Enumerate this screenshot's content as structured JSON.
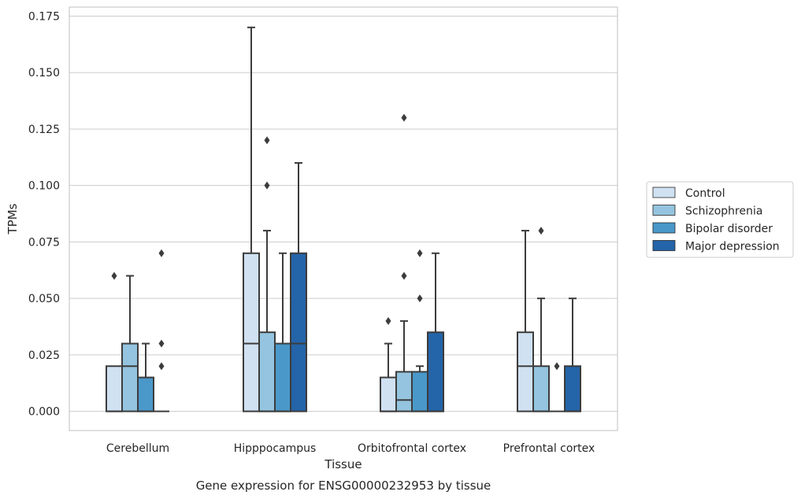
{
  "chart_data": {
    "type": "box",
    "title": "",
    "caption": "Gene expression for ENSG00000232953 by tissue",
    "xlabel": "Tissue",
    "ylabel": "TPMs",
    "ylim": [
      -0.0085,
      0.179
    ],
    "yticks": [
      0.0,
      0.025,
      0.05,
      0.075,
      0.1,
      0.125,
      0.15,
      0.175
    ],
    "ytick_labels": [
      "0.000",
      "0.025",
      "0.050",
      "0.075",
      "0.100",
      "0.125",
      "0.150",
      "0.175"
    ],
    "grid": true,
    "legend_position": "right",
    "categories": [
      "Cerebellum",
      "Hipppocampus",
      "Orbitofrontal cortex",
      "Prefrontal cortex"
    ],
    "series": [
      {
        "name": "Control",
        "color": "#d0e1f2",
        "boxes": [
          {
            "whislo": 0.0,
            "q1": 0.0,
            "med": 0.0,
            "q3": 0.02,
            "whishi": 0.02,
            "fliers": [
              0.06
            ]
          },
          {
            "whislo": 0.0,
            "q1": 0.0,
            "med": 0.03,
            "q3": 0.07,
            "whishi": 0.17,
            "fliers": []
          },
          {
            "whislo": 0.0,
            "q1": 0.0,
            "med": 0.0,
            "q3": 0.015,
            "whishi": 0.03,
            "fliers": [
              0.04
            ]
          },
          {
            "whislo": 0.0,
            "q1": 0.0,
            "med": 0.02,
            "q3": 0.035,
            "whishi": 0.08,
            "fliers": []
          }
        ]
      },
      {
        "name": "Schizophrenia",
        "color": "#94c4df",
        "boxes": [
          {
            "whislo": 0.0,
            "q1": 0.0,
            "med": 0.02,
            "q3": 0.03,
            "whishi": 0.06,
            "fliers": []
          },
          {
            "whislo": 0.0,
            "q1": 0.0,
            "med": 0.0,
            "q3": 0.035,
            "whishi": 0.08,
            "fliers": [
              0.1,
              0.12
            ]
          },
          {
            "whislo": 0.0,
            "q1": 0.0,
            "med": 0.005,
            "q3": 0.0175,
            "whishi": 0.04,
            "fliers": [
              0.06,
              0.13
            ]
          },
          {
            "whislo": 0.0,
            "q1": 0.0,
            "med": 0.0,
            "q3": 0.02,
            "whishi": 0.05,
            "fliers": [
              0.08
            ]
          }
        ]
      },
      {
        "name": "Bipolar disorder",
        "color": "#4a98c9",
        "boxes": [
          {
            "whislo": 0.0,
            "q1": 0.0,
            "med": 0.0,
            "q3": 0.015,
            "whishi": 0.03,
            "fliers": []
          },
          {
            "whislo": 0.0,
            "q1": 0.0,
            "med": 0.0,
            "q3": 0.03,
            "whishi": 0.07,
            "fliers": []
          },
          {
            "whislo": 0.0,
            "q1": 0.0,
            "med": 0.0,
            "q3": 0.0175,
            "whishi": 0.02,
            "fliers": [
              0.05,
              0.07
            ]
          },
          {
            "whislo": 0.0,
            "q1": 0.0,
            "med": 0.0,
            "q3": 0.0,
            "whishi": 0.0,
            "fliers": [
              0.02
            ]
          }
        ]
      },
      {
        "name": "Major depression",
        "color": "#2464a8",
        "boxes": [
          {
            "whislo": 0.0,
            "q1": 0.0,
            "med": 0.0,
            "q3": 0.0,
            "whishi": 0.0,
            "fliers": [
              0.02,
              0.03,
              0.07
            ]
          },
          {
            "whislo": 0.0,
            "q1": 0.0,
            "med": 0.03,
            "q3": 0.07,
            "whishi": 0.11,
            "fliers": []
          },
          {
            "whislo": 0.0,
            "q1": 0.0,
            "med": 0.0,
            "q3": 0.035,
            "whishi": 0.07,
            "fliers": []
          },
          {
            "whislo": 0.0,
            "q1": 0.0,
            "med": 0.0,
            "q3": 0.02,
            "whishi": 0.05,
            "fliers": []
          }
        ]
      }
    ]
  }
}
